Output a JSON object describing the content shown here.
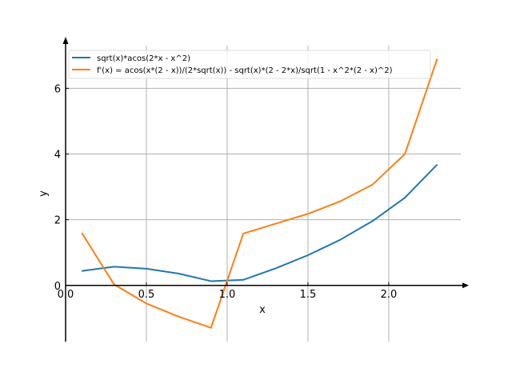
{
  "chart_data": {
    "type": "line",
    "title": "",
    "xlabel": "x",
    "ylabel": "y",
    "xlim": [
      0.0,
      2.446
    ],
    "ylim": [
      -1.71,
      7.3
    ],
    "grid": true,
    "legend_position": "top",
    "x_ticks": [
      {
        "value": 0.0,
        "label": "0.0"
      },
      {
        "value": 0.5,
        "label": "0.5"
      },
      {
        "value": 1.0,
        "label": "1.0"
      },
      {
        "value": 1.5,
        "label": "1.5"
      },
      {
        "value": 2.0,
        "label": "2.0"
      }
    ],
    "y_ticks": [
      {
        "value": 0,
        "label": "0"
      },
      {
        "value": 2,
        "label": "2"
      },
      {
        "value": 4,
        "label": "4"
      },
      {
        "value": 6,
        "label": "6"
      }
    ],
    "x": [
      0.1,
      0.3,
      0.5,
      0.7,
      0.9,
      1.1,
      1.3,
      1.5,
      1.7,
      1.9,
      2.1,
      2.3
    ],
    "series": [
      {
        "name": "sqrt(x)*acos(2*x - x^2)",
        "color": "#1f77b4",
        "values": [
          0.44,
          0.57,
          0.51,
          0.36,
          0.13,
          0.17,
          0.52,
          0.92,
          1.39,
          1.96,
          2.67,
          3.68
        ]
      },
      {
        "name": "f'(x) = acos(x*(2 - x))/(2*sqrt(x)) - sqrt(x)*(2 - 2*x)/sqrt(1 - x^2*(2 - x)^2)",
        "color": "#ff7f0e",
        "values": [
          1.6,
          0.03,
          -0.55,
          -0.95,
          -1.29,
          1.58,
          1.88,
          2.18,
          2.56,
          3.07,
          4.0,
          6.9
        ]
      }
    ]
  }
}
